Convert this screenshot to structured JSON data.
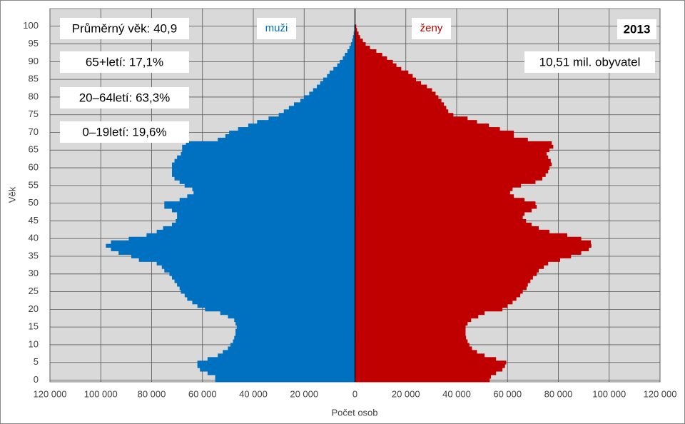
{
  "chart_data": {
    "type": "pyramid",
    "x_label": "Počet osob",
    "y_label": "Věk",
    "annotations": [
      "Průměrný věk: 40,9",
      "65+letí: 17,1%",
      "20–64letí: 63,3%",
      "0–19letí: 19,6%",
      "2013",
      "10,51 mil. obyvatel"
    ],
    "categories": [
      0,
      1,
      2,
      3,
      4,
      5,
      6,
      7,
      8,
      9,
      10,
      11,
      12,
      13,
      14,
      15,
      16,
      17,
      18,
      19,
      20,
      21,
      22,
      23,
      24,
      25,
      26,
      27,
      28,
      29,
      30,
      31,
      32,
      33,
      34,
      35,
      36,
      37,
      38,
      39,
      40,
      41,
      42,
      43,
      44,
      45,
      46,
      47,
      48,
      49,
      50,
      51,
      52,
      53,
      54,
      55,
      56,
      57,
      58,
      59,
      60,
      61,
      62,
      63,
      64,
      65,
      66,
      67,
      68,
      69,
      70,
      71,
      72,
      73,
      74,
      75,
      76,
      77,
      78,
      79,
      80,
      81,
      82,
      83,
      84,
      85,
      86,
      87,
      88,
      89,
      90,
      91,
      92,
      93,
      94,
      95,
      96,
      97,
      98,
      99,
      100
    ],
    "series": [
      {
        "name": "muži",
        "color": "#0070c0",
        "side": "left",
        "values": [
          55000,
          55000,
          58000,
          61000,
          62000,
          62000,
          58000,
          54000,
          52000,
          50000,
          49000,
          48000,
          47500,
          47000,
          47000,
          46500,
          47000,
          47500,
          50000,
          53000,
          59000,
          62000,
          64000,
          66000,
          67000,
          68500,
          69000,
          70000,
          71000,
          72000,
          73000,
          75000,
          76000,
          78000,
          85000,
          88000,
          93000,
          96000,
          98000,
          96000,
          89000,
          82000,
          78000,
          75500,
          72000,
          70500,
          70000,
          70000,
          72000,
          75000,
          75000,
          69000,
          66000,
          63500,
          64000,
          67000,
          69000,
          71000,
          72000,
          72000,
          72000,
          72000,
          71000,
          70000,
          68500,
          68000,
          68000,
          66500,
          54000,
          51000,
          49500,
          46000,
          42000,
          38500,
          34000,
          30000,
          28000,
          26000,
          24000,
          21500,
          20000,
          18000,
          16500,
          15000,
          13700,
          12500,
          11000,
          10000,
          8500,
          7000,
          6000,
          4800,
          4000,
          3000,
          2200,
          1600,
          1100,
          800,
          500,
          300,
          300
        ]
      },
      {
        "name": "ženy",
        "color": "#c00000",
        "side": "right",
        "values": [
          53000,
          53500,
          55500,
          58000,
          59000,
          59500,
          55500,
          51000,
          48000,
          46000,
          45000,
          44300,
          43700,
          43500,
          43500,
          43500,
          44300,
          45700,
          48500,
          51000,
          58000,
          60000,
          62000,
          63500,
          65000,
          66000,
          67500,
          68000,
          69000,
          70000,
          71500,
          72300,
          74300,
          76000,
          80700,
          85000,
          89000,
          92000,
          93000,
          92800,
          89000,
          83500,
          76500,
          72300,
          69500,
          67300,
          66000,
          66700,
          69500,
          71500,
          71000,
          66700,
          62500,
          61000,
          62000,
          65300,
          71000,
          73700,
          75000,
          76000,
          76500,
          77400,
          77000,
          76000,
          75400,
          76500,
          78000,
          77400,
          68000,
          62500,
          62500,
          57000,
          52700,
          48000,
          44300,
          38700,
          36700,
          35900,
          35000,
          34000,
          32800,
          31700,
          30300,
          28300,
          26000,
          24000,
          22700,
          21000,
          18200,
          16300,
          14900,
          12600,
          10700,
          8400,
          5900,
          4200,
          3100,
          2000,
          1400,
          800,
          500
        ]
      }
    ],
    "xlim": [
      -120000,
      120000
    ],
    "xticks": [
      {
        "value": -120000,
        "label": "120 000"
      },
      {
        "value": -100000,
        "label": "100 000"
      },
      {
        "value": -80000,
        "label": "80 000"
      },
      {
        "value": -60000,
        "label": "60 000"
      },
      {
        "value": -40000,
        "label": "40 000"
      },
      {
        "value": -20000,
        "label": "20 000"
      },
      0,
      {
        "value": 20000,
        "label": "20 000"
      },
      {
        "value": 40000,
        "label": "40 000"
      },
      {
        "value": 60000,
        "label": "60 000"
      },
      {
        "value": 80000,
        "label": "80 000"
      },
      {
        "value": 100000,
        "label": "100 000"
      },
      {
        "value": 120000,
        "label": "120 000"
      }
    ],
    "ylim": [
      -0.5,
      105
    ],
    "yticks": [
      0,
      5,
      10,
      15,
      20,
      25,
      30,
      35,
      40,
      45,
      50,
      55,
      60,
      65,
      70,
      75,
      80,
      85,
      90,
      95,
      100
    ],
    "grid": true
  }
}
